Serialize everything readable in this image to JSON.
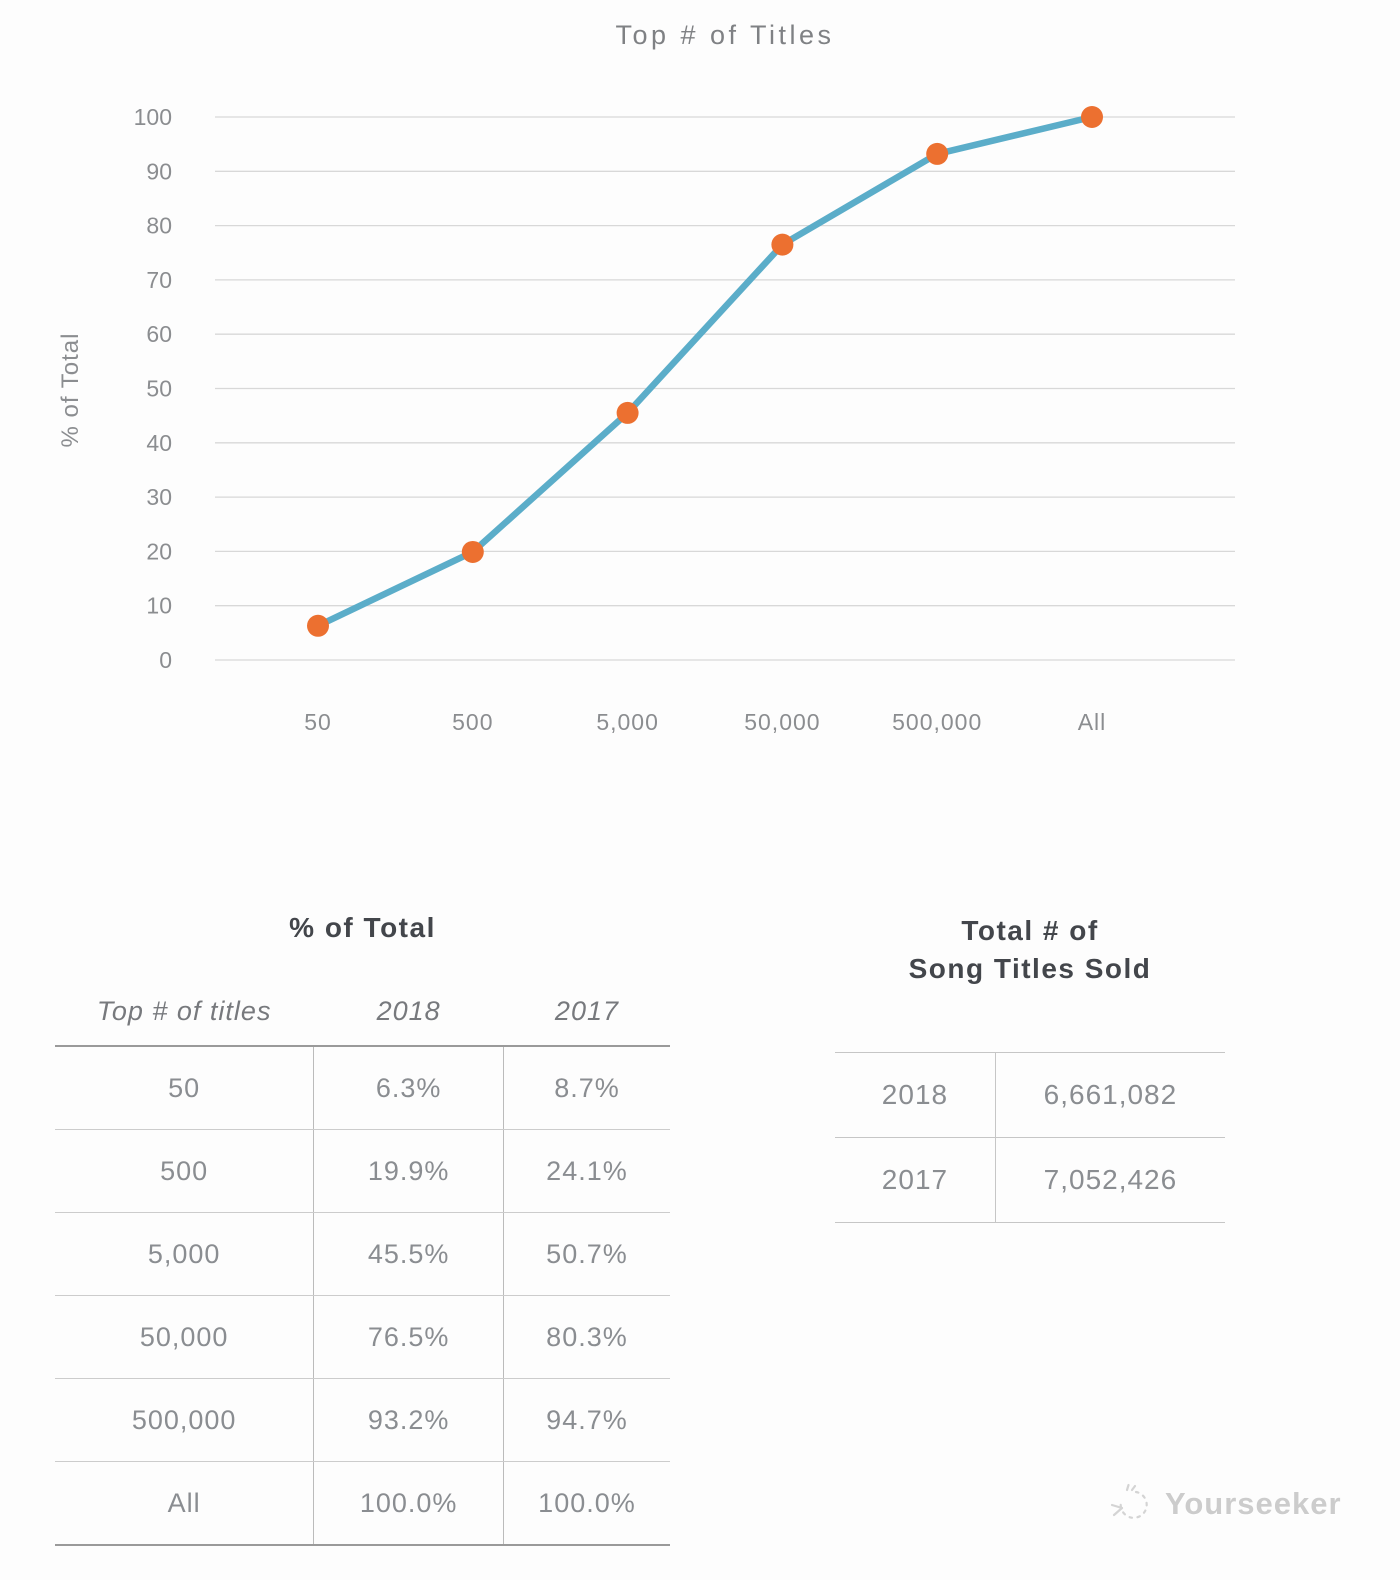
{
  "chart_data": {
    "type": "line",
    "title": "Top # of Titles",
    "xlabel": "",
    "ylabel": "% of Total",
    "categories": [
      "50",
      "500",
      "5,000",
      "50,000",
      "500,000",
      "All"
    ],
    "series": [
      {
        "name": "2018",
        "values": [
          6.3,
          19.9,
          45.5,
          76.5,
          93.2,
          100.0
        ]
      }
    ],
    "ylim": [
      0,
      100
    ],
    "yticks": [
      0,
      10,
      20,
      30,
      40,
      50,
      60,
      70,
      80,
      90,
      100
    ],
    "grid": true,
    "legend": "none",
    "line_color": "#5badc9",
    "marker_color": "#ec7030",
    "grid_color": "#d8d8d8",
    "tick_color": "#8b8d90"
  },
  "tables": {
    "pct_of_total": {
      "title": "% of Total",
      "columns": [
        "Top # of titles",
        "2018",
        "2017"
      ],
      "rows": [
        [
          "50",
          "6.3%",
          "8.7%"
        ],
        [
          "500",
          "19.9%",
          "24.1%"
        ],
        [
          "5,000",
          "45.5%",
          "50.7%"
        ],
        [
          "50,000",
          "76.5%",
          "80.3%"
        ],
        [
          "500,000",
          "93.2%",
          "94.7%"
        ],
        [
          "All",
          "100.0%",
          "100.0%"
        ]
      ]
    },
    "totals": {
      "title_line1": "Total # of",
      "title_line2": "Song Titles Sold",
      "rows": [
        [
          "2018",
          "6,661,082"
        ],
        [
          "2017",
          "7,052,426"
        ]
      ]
    }
  },
  "watermark": {
    "label": "Yourseeker"
  }
}
